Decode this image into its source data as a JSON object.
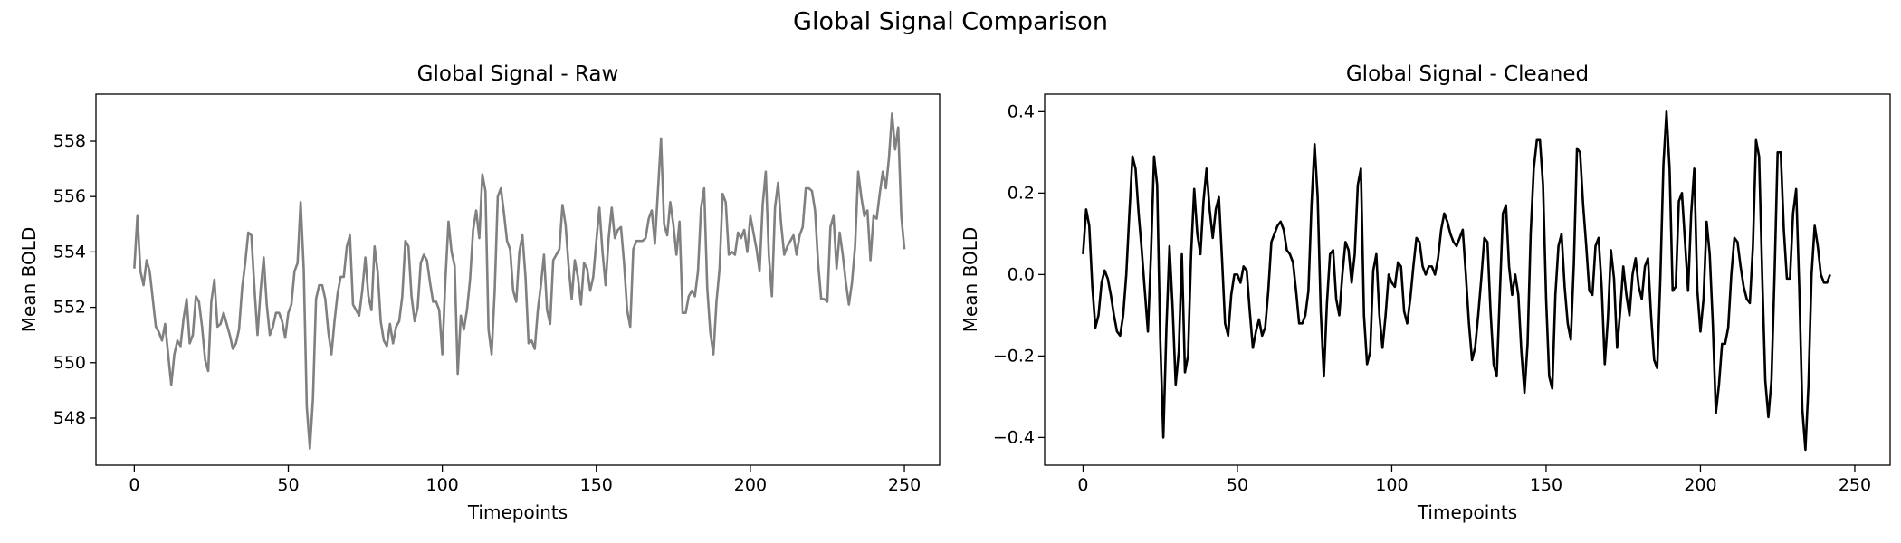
{
  "suptitle": "Global Signal Comparison",
  "colors": {
    "raw": "#808080",
    "cleaned": "#000000",
    "axis": "#000000"
  },
  "chart_data": [
    {
      "type": "line",
      "title": "Global Signal - Raw",
      "xlabel": "Timepoints",
      "ylabel": "Mean BOLD",
      "xlim": [
        -12.45,
        261.45
      ],
      "ylim": [
        546.3,
        559.7
      ],
      "xticks": [
        0,
        50,
        100,
        150,
        200,
        250
      ],
      "yticks": [
        548,
        550,
        552,
        554,
        556,
        558
      ],
      "ytick_decimals": 0,
      "series": [
        {
          "name": "Raw",
          "color": "#808080",
          "x_start": 0,
          "x_step": 1,
          "values": [
            553.4,
            555.3,
            553.3,
            552.8,
            553.7,
            553.3,
            552.3,
            551.3,
            551.1,
            550.8,
            551.4,
            550.3,
            549.2,
            550.3,
            550.8,
            550.6,
            551.6,
            552.3,
            550.7,
            551.0,
            552.4,
            552.2,
            551.3,
            550.1,
            549.7,
            552.2,
            553.0,
            551.3,
            551.4,
            551.8,
            551.4,
            551.0,
            550.5,
            550.7,
            551.2,
            552.7,
            553.6,
            554.7,
            554.6,
            552.7,
            551.0,
            552.6,
            553.8,
            552.1,
            551.0,
            551.3,
            551.8,
            551.8,
            551.5,
            550.9,
            551.8,
            552.1,
            553.3,
            553.6,
            555.8,
            553.4,
            548.4,
            546.9,
            548.7,
            552.3,
            552.8,
            552.8,
            552.3,
            551.1,
            550.3,
            551.5,
            552.5,
            553.1,
            553.1,
            554.2,
            554.6,
            552.1,
            551.9,
            551.7,
            552.6,
            553.8,
            552.4,
            551.9,
            554.2,
            553.3,
            551.5,
            550.8,
            550.6,
            551.4,
            550.7,
            551.3,
            551.5,
            552.4,
            554.4,
            554.2,
            552.4,
            551.5,
            552.0,
            553.6,
            553.9,
            553.7,
            552.9,
            552.2,
            552.2,
            551.9,
            550.3,
            553.0,
            555.1,
            554.0,
            553.5,
            549.6,
            551.7,
            551.2,
            551.9,
            553.0,
            554.8,
            555.5,
            554.5,
            556.8,
            556.2,
            551.2,
            550.3,
            552.6,
            556.0,
            556.3,
            555.4,
            554.4,
            554.1,
            552.6,
            552.2,
            554.0,
            554.6,
            553.1,
            550.7,
            550.8,
            550.5,
            551.9,
            552.8,
            553.9,
            551.9,
            551.4,
            553.7,
            553.9,
            554.1,
            555.7,
            555.0,
            553.5,
            552.3,
            553.7,
            553.1,
            552.1,
            553.6,
            553.4,
            552.6,
            553.1,
            554.4,
            555.6,
            554.0,
            552.8,
            554.5,
            555.6,
            554.5,
            554.8,
            554.9,
            553.6,
            551.9,
            551.3,
            554.1,
            554.4,
            554.4,
            554.4,
            554.5,
            555.2,
            555.5,
            554.3,
            556.2,
            558.1,
            555.0,
            554.6,
            555.8,
            555.0,
            553.9,
            555.1,
            551.8,
            551.8,
            552.4,
            552.6,
            552.4,
            553.3,
            555.6,
            556.3,
            552.7,
            551.1,
            550.3,
            552.2,
            553.4,
            556.1,
            555.8,
            553.9,
            554.0,
            553.9,
            554.7,
            554.5,
            554.8,
            554.0,
            555.3,
            554.7,
            554.1,
            553.3,
            555.7,
            556.9,
            553.9,
            552.4,
            555.6,
            556.5,
            555.0,
            553.9,
            554.2,
            554.4,
            554.6,
            553.9,
            554.6,
            554.9,
            556.3,
            556.3,
            556.2,
            555.5,
            553.6,
            552.3,
            552.3,
            552.2,
            554.9,
            555.3,
            553.4,
            554.7,
            553.9,
            552.9,
            552.1,
            552.9,
            554.2,
            556.9,
            556.0,
            555.3,
            555.5,
            553.7,
            555.3,
            555.2,
            556.1,
            556.9,
            556.3,
            557.4,
            559.0,
            557.7,
            558.5,
            555.3,
            554.1
          ]
        }
      ]
    },
    {
      "type": "line",
      "title": "Global Signal - Cleaned",
      "xlabel": "Timepoints",
      "ylabel": "Mean BOLD",
      "xlim": [
        -12.45,
        261.45
      ],
      "ylim": [
        -0.468,
        0.443
      ],
      "xticks": [
        0,
        50,
        100,
        150,
        200,
        250
      ],
      "yticks": [
        -0.4,
        -0.2,
        0.0,
        0.2,
        0.4
      ],
      "ytick_decimals": 1,
      "series": [
        {
          "name": "Cleaned",
          "color": "#000000",
          "x_start": 0,
          "x_step": 1,
          "values": [
            0.05,
            0.16,
            0.12,
            -0.03,
            -0.13,
            -0.1,
            -0.02,
            0.01,
            -0.01,
            -0.05,
            -0.1,
            -0.14,
            -0.15,
            -0.1,
            0.0,
            0.15,
            0.29,
            0.26,
            0.15,
            0.06,
            -0.04,
            -0.14,
            0.05,
            0.29,
            0.22,
            -0.16,
            -0.4,
            -0.13,
            0.07,
            -0.08,
            -0.27,
            -0.19,
            0.05,
            -0.24,
            -0.2,
            0.05,
            0.21,
            0.1,
            0.05,
            0.18,
            0.26,
            0.16,
            0.09,
            0.16,
            0.19,
            0.04,
            -0.12,
            -0.15,
            -0.05,
            0.0,
            0.0,
            -0.02,
            0.02,
            0.01,
            -0.09,
            -0.18,
            -0.14,
            -0.11,
            -0.15,
            -0.13,
            -0.04,
            0.08,
            0.1,
            0.12,
            0.13,
            0.11,
            0.06,
            0.05,
            0.03,
            -0.04,
            -0.12,
            -0.12,
            -0.1,
            -0.04,
            0.17,
            0.32,
            0.19,
            -0.09,
            -0.25,
            -0.07,
            0.05,
            0.06,
            -0.06,
            -0.1,
            0.0,
            0.08,
            0.06,
            -0.02,
            0.05,
            0.22,
            0.26,
            -0.1,
            -0.22,
            -0.19,
            0.01,
            0.05,
            -0.1,
            -0.18,
            -0.1,
            0.0,
            -0.02,
            -0.03,
            0.03,
            0.02,
            -0.09,
            -0.12,
            -0.06,
            0.02,
            0.09,
            0.08,
            0.02,
            0.0,
            0.02,
            0.02,
            0.0,
            0.04,
            0.11,
            0.15,
            0.13,
            0.1,
            0.08,
            0.07,
            0.09,
            0.11,
            0.0,
            -0.12,
            -0.21,
            -0.18,
            -0.1,
            -0.01,
            0.09,
            0.08,
            -0.09,
            -0.22,
            -0.25,
            -0.05,
            0.15,
            0.17,
            0.02,
            -0.05,
            0.0,
            -0.05,
            -0.19,
            -0.29,
            -0.17,
            0.1,
            0.26,
            0.33,
            0.33,
            0.22,
            -0.06,
            -0.25,
            -0.28,
            -0.05,
            0.07,
            0.1,
            -0.03,
            -0.12,
            -0.16,
            0.03,
            0.31,
            0.3,
            0.17,
            0.07,
            -0.04,
            -0.05,
            0.07,
            0.09,
            -0.03,
            -0.22,
            -0.11,
            0.06,
            -0.01,
            -0.18,
            -0.09,
            0.02,
            -0.05,
            -0.1,
            0.0,
            0.04,
            -0.03,
            -0.06,
            0.02,
            0.04,
            -0.1,
            -0.21,
            -0.23,
            -0.01,
            0.27,
            0.4,
            0.26,
            -0.04,
            -0.03,
            0.18,
            0.2,
            0.08,
            -0.04,
            0.15,
            0.26,
            -0.04,
            -0.14,
            -0.06,
            0.13,
            0.05,
            -0.12,
            -0.34,
            -0.27,
            -0.17,
            -0.17,
            -0.13,
            0.0,
            0.09,
            0.08,
            0.02,
            -0.03,
            -0.06,
            -0.07,
            0.07,
            0.33,
            0.29,
            0.0,
            -0.26,
            -0.35,
            -0.26,
            0.0,
            0.3,
            0.3,
            0.11,
            -0.01,
            -0.01,
            0.15,
            0.21,
            -0.03,
            -0.33,
            -0.43,
            -0.27,
            0.0,
            0.12,
            0.07,
            0.0,
            -0.02,
            -0.02,
            0.0
          ]
        }
      ]
    }
  ]
}
